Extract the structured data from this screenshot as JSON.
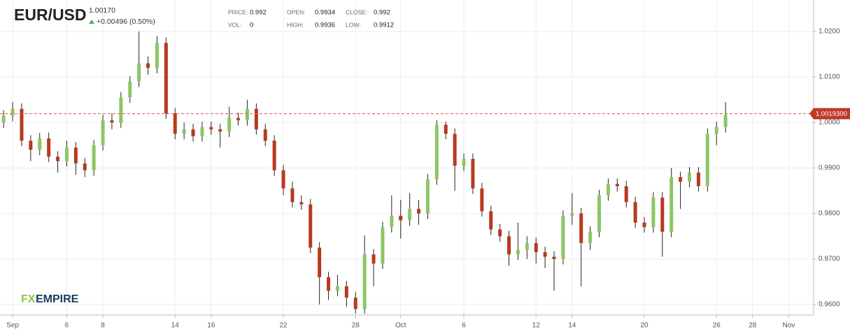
{
  "chart_data": {
    "type": "candlestick",
    "title": "EUR/USD",
    "last_price": "1.00170",
    "change": "+0.00496 (0.50%)",
    "stats": [
      {
        "label": "PRICE:",
        "value": 0.992
      },
      {
        "label": "OPEN:",
        "value": 0.9934
      },
      {
        "label": "CLOSE:",
        "value": 0.992
      },
      {
        "label": "VOL:",
        "value": 0
      },
      {
        "label": "HIGH:",
        "value": 0.9936
      },
      {
        "label": "LOW:",
        "value": 0.9912
      }
    ],
    "watermark": [
      "FX",
      "EMPIRE"
    ],
    "up_color": "#8cc665",
    "down_color": "#b83a1e",
    "price_line": {
      "value": 1.00193,
      "label": "1.0019300",
      "color": "#d9534f"
    },
    "x": [
      -0.5,
      0,
      0.5,
      1,
      1.5,
      2,
      2.5,
      3,
      3.5,
      4,
      4.5,
      5,
      5.5,
      6,
      6.5,
      7,
      7.5,
      8,
      8.5,
      9,
      9.5,
      10,
      10.5,
      11,
      11.5,
      12,
      12.5,
      13,
      13.5,
      14,
      14.5,
      15,
      15.5,
      16,
      16.5,
      17,
      17.5,
      18,
      18.5,
      19,
      19.5,
      20,
      20.5,
      21,
      21.5,
      22,
      22.5,
      23,
      23.5,
      24,
      24.5,
      25,
      25.5,
      26,
      26.5,
      27,
      27.5,
      28,
      28.5,
      29,
      29.5,
      30,
      30.5,
      31,
      31.5,
      32,
      32.5,
      33,
      33.5,
      34,
      34.5,
      35,
      35.5,
      36,
      36.5,
      37,
      37.5,
      38,
      38.5,
      39,
      39.5
    ],
    "open": [
      1.0,
      1.0015,
      1.003,
      0.996,
      0.994,
      0.9965,
      0.9925,
      0.9915,
      0.9945,
      0.991,
      0.9895,
      0.995,
      1.0005,
      1.0,
      1.0055,
      1.009,
      1.013,
      1.012,
      1.0175,
      1.002,
      0.9975,
      0.9985,
      0.997,
      0.999,
      0.9985,
      0.998,
      1.001,
      1.0005,
      1.003,
      0.9985,
      0.996,
      0.9895,
      0.9855,
      0.9825,
      0.982,
      0.9725,
      0.966,
      0.963,
      0.964,
      0.9615,
      0.959,
      0.971,
      0.969,
      0.977,
      0.9795,
      0.9785,
      0.981,
      0.98,
      0.9875,
      0.9995,
      0.9975,
      0.9905,
      0.992,
      0.9855,
      0.9805,
      0.9765,
      0.975,
      0.971,
      0.972,
      0.9735,
      0.9715,
      0.9705,
      0.97,
      0.9795,
      0.98,
      0.9735,
      0.976,
      0.984,
      0.9865,
      0.986,
      0.9825,
      0.978,
      0.977,
      0.9835,
      0.976,
      0.988,
      0.987,
      0.989,
      0.986,
      0.9975,
      0.999
    ],
    "high": [
      1.0027,
      1.0045,
      1.0042,
      0.9972,
      0.9977,
      0.9978,
      0.9937,
      0.996,
      0.9957,
      0.9922,
      0.9962,
      1.0017,
      1.002,
      1.0067,
      1.0102,
      1.02,
      1.0145,
      1.019,
      1.0187,
      1.0032,
      1.0,
      0.9997,
      1.0002,
      1.0002,
      0.9997,
      1.0035,
      1.0022,
      1.005,
      1.0042,
      0.9997,
      0.9972,
      0.9907,
      0.987,
      0.984,
      0.9832,
      0.9737,
      0.9672,
      0.9665,
      0.9652,
      0.9627,
      0.9752,
      0.9722,
      0.9782,
      0.984,
      0.983,
      0.9845,
      0.983,
      0.9887,
      1.0005,
      1.0002,
      0.9987,
      0.9932,
      0.9932,
      0.9867,
      0.9817,
      0.9777,
      0.9762,
      0.978,
      0.975,
      0.9747,
      0.9727,
      0.9717,
      0.9807,
      0.9845,
      0.9812,
      0.9772,
      0.9852,
      0.9877,
      0.9877,
      0.9872,
      0.9837,
      0.9792,
      0.9847,
      0.9847,
      0.99,
      0.9892,
      0.9902,
      0.9902,
      0.9987,
      1.0002,
      1.0045
    ],
    "low": [
      0.9988,
      1.0003,
      0.9948,
      0.9915,
      0.9928,
      0.9913,
      0.989,
      0.9903,
      0.9885,
      0.988,
      0.9883,
      0.9938,
      0.9985,
      0.9988,
      1.0043,
      1.0078,
      1.0105,
      1.0108,
      1.0008,
      0.9963,
      0.9963,
      0.9958,
      0.9958,
      0.9973,
      0.9945,
      0.9968,
      0.9993,
      0.9993,
      0.9973,
      0.9948,
      0.9883,
      0.984,
      0.9813,
      0.9808,
      0.9713,
      0.96,
      0.961,
      0.9618,
      0.9595,
      0.958,
      0.958,
      0.964,
      0.9678,
      0.9758,
      0.9745,
      0.9773,
      0.9775,
      0.9788,
      0.9863,
      0.9963,
      0.985,
      0.9893,
      0.9843,
      0.9793,
      0.9753,
      0.9738,
      0.9685,
      0.9698,
      0.97,
      0.969,
      0.968,
      0.963,
      0.9688,
      0.9775,
      0.964,
      0.972,
      0.9748,
      0.9828,
      0.9848,
      0.9813,
      0.9768,
      0.9758,
      0.9758,
      0.9705,
      0.9748,
      0.981,
      0.9858,
      0.9848,
      0.9848,
      0.995,
      0.9978
    ],
    "close": [
      1.0015,
      1.003,
      0.996,
      0.994,
      0.9965,
      0.9925,
      0.9915,
      0.9945,
      0.991,
      0.9895,
      0.995,
      1.0005,
      1.0,
      1.0055,
      1.009,
      1.013,
      1.012,
      1.0175,
      1.002,
      0.9975,
      0.9985,
      0.997,
      0.999,
      0.9985,
      0.998,
      1.001,
      1.0005,
      1.003,
      0.9985,
      0.996,
      0.9895,
      0.9855,
      0.9825,
      0.982,
      0.9725,
      0.966,
      0.963,
      0.964,
      0.9615,
      0.959,
      0.971,
      0.969,
      0.977,
      0.9795,
      0.9785,
      0.981,
      0.98,
      0.9875,
      0.9995,
      0.9975,
      0.9905,
      0.992,
      0.9855,
      0.9805,
      0.9765,
      0.975,
      0.971,
      0.972,
      0.9735,
      0.9715,
      0.9705,
      0.97,
      0.9795,
      0.98,
      0.9735,
      0.976,
      0.984,
      0.9865,
      0.986,
      0.9825,
      0.978,
      0.977,
      0.9835,
      0.976,
      0.988,
      0.987,
      0.989,
      0.986,
      0.9975,
      0.999,
      1.0017
    ],
    "xlim": [
      -0.7,
      44.38
    ],
    "xticks": [
      {
        "value": 0,
        "label": "Sep"
      },
      {
        "value": 3,
        "label": "6"
      },
      {
        "value": 5,
        "label": "8"
      },
      {
        "value": 9,
        "label": "14"
      },
      {
        "value": 11,
        "label": "16"
      },
      {
        "value": 15,
        "label": "22"
      },
      {
        "value": 19,
        "label": "28"
      },
      {
        "value": 21.5,
        "label": "Oct"
      },
      {
        "value": 25,
        "label": "6"
      },
      {
        "value": 29,
        "label": "12"
      },
      {
        "value": 31,
        "label": "14"
      },
      {
        "value": 35,
        "label": "20"
      },
      {
        "value": 39,
        "label": "26"
      },
      {
        "value": 41,
        "label": "28"
      },
      {
        "value": 43,
        "label": "Nov"
      }
    ],
    "ylim": [
      0.95769,
      1.02692
    ],
    "yticks": [
      {
        "value": 0.96,
        "label": "0.9600"
      },
      {
        "value": 0.97,
        "label": "0.9700"
      },
      {
        "value": 0.98,
        "label": "0.9800"
      },
      {
        "value": 0.99,
        "label": "0.9900"
      },
      {
        "value": 1.0,
        "label": "1.0000"
      },
      {
        "value": 1.01,
        "label": "1.0100"
      },
      {
        "value": 1.02,
        "label": "1.0200"
      }
    ],
    "grid": true
  }
}
